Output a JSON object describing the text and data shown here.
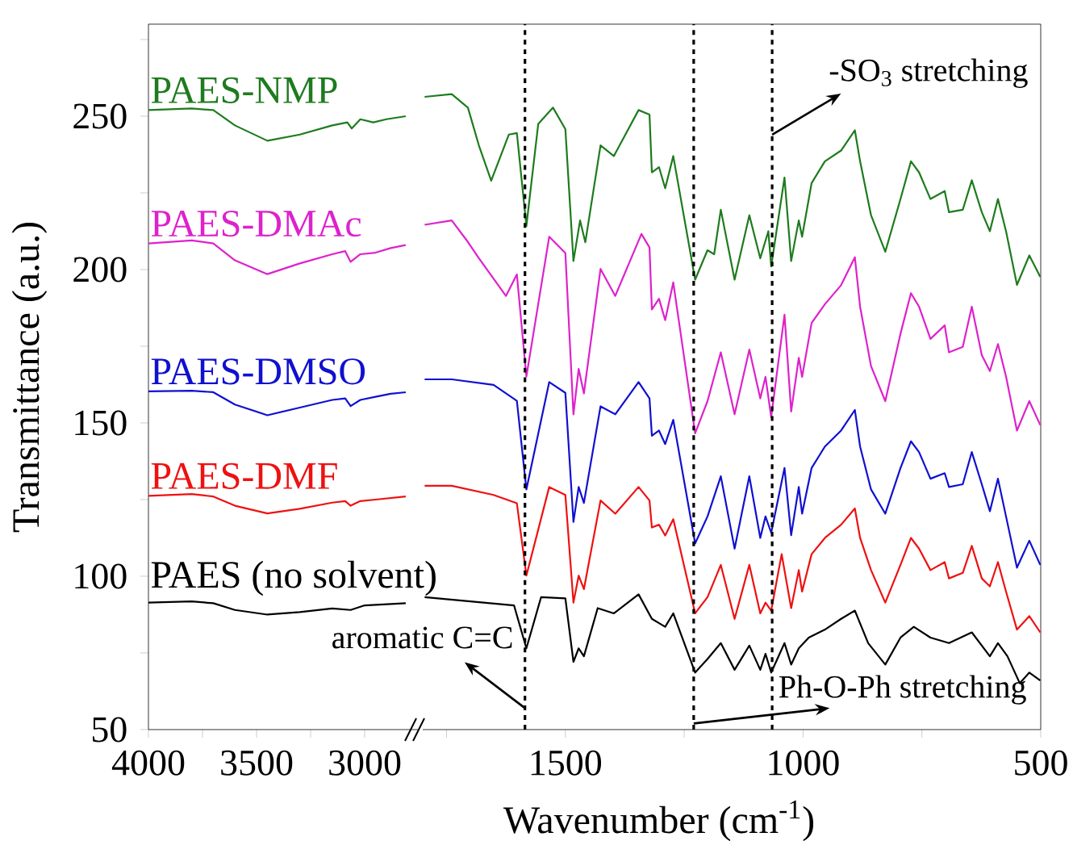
{
  "chart_data": [
    {
      "type": "line",
      "ylabel": "Transmittance (a.u.)",
      "xlim": [
        4000,
        2750
      ],
      "xticks": [
        4000,
        {
          "value": 3750,
          "label": null
        },
        3500,
        {
          "value": 3250,
          "label": null
        },
        3000
      ],
      "ylim": [
        50,
        280
      ],
      "yticks": [
        50,
        {
          "value": 75,
          "label": null
        },
        100,
        {
          "value": 125,
          "label": null
        },
        150,
        {
          "value": 175,
          "label": null
        },
        200,
        {
          "value": 225,
          "label": null
        },
        250,
        {
          "value": 275,
          "label": null
        }
      ],
      "series": [
        {
          "name": "PAES-NMP",
          "color": "#1e7b1e",
          "x": [
            4000,
            3800,
            3700,
            3600,
            3450,
            3300,
            3150,
            3080,
            3060,
            3020,
            2960,
            2900,
            2810
          ],
          "values": [
            252,
            252.5,
            252,
            247,
            242,
            244,
            247,
            248,
            246,
            249,
            248,
            249,
            250
          ]
        },
        {
          "name": "PAES-DMAc",
          "color": "#dd22cc",
          "x": [
            4000,
            3800,
            3700,
            3600,
            3450,
            3300,
            3150,
            3090,
            3065,
            3020,
            2950,
            2880,
            2810
          ],
          "values": [
            208.5,
            209.5,
            208.5,
            203,
            198.5,
            202,
            205,
            206,
            202.5,
            205,
            205.5,
            207,
            208
          ]
        },
        {
          "name": "PAES-DMSO",
          "color": "#1010d0",
          "x": [
            4000,
            3800,
            3700,
            3600,
            3450,
            3300,
            3150,
            3090,
            3065,
            3020,
            2950,
            2880,
            2810
          ],
          "values": [
            160.3,
            160.5,
            160,
            156,
            152.5,
            155,
            157.5,
            158,
            155.5,
            157.5,
            158.5,
            159.5,
            160
          ]
        },
        {
          "name": "PAES-DMF",
          "color": "#ee1111",
          "x": [
            4000,
            3800,
            3700,
            3600,
            3450,
            3300,
            3150,
            3090,
            3065,
            3020,
            2950,
            2810
          ],
          "values": [
            126.2,
            126.8,
            126,
            123,
            120.5,
            122,
            124,
            124.5,
            123,
            124.5,
            125,
            126
          ]
        },
        {
          "name": "PAES (no solvent)",
          "color": "#000000",
          "x": [
            4000,
            3800,
            3700,
            3600,
            3450,
            3300,
            3150,
            3065,
            3000,
            2810
          ],
          "values": [
            91.4,
            91.8,
            91.2,
            89,
            87.5,
            88.3,
            89.5,
            89,
            90.5,
            91.2
          ]
        }
      ]
    },
    {
      "type": "line",
      "xlabel": "Wavenumber (cm$^{-1}$)",
      "xlim": [
        1800,
        500
      ],
      "xticks": [
        {
          "value": 1750,
          "label": null
        },
        1500,
        {
          "value": 1250,
          "label": null
        },
        1000,
        {
          "value": 750,
          "label": null
        },
        500
      ],
      "ylim": [
        50,
        280
      ],
      "tick_labels": "x",
      "ref_lines": [
        {
          "axis": "x",
          "value": 1585,
          "color": "#000000",
          "line_style": "dashed"
        },
        {
          "axis": "x",
          "value": 1230,
          "color": "#000000",
          "line_style": "dashed"
        },
        {
          "axis": "x",
          "value": 1065,
          "color": "#000000",
          "line_style": "dashed"
        }
      ],
      "annotations": [
        {
          "text": "-SO$_{3}$ stretching",
          "x": 1065,
          "y": 244
        },
        {
          "text": "aromatic C=C",
          "x": 1585,
          "y": 57
        },
        {
          "text": "Ph-O-Ph stretching",
          "x": 1230,
          "y": 52
        }
      ],
      "series": [
        {
          "color": "#1e7b1e",
          "x": [
            1796,
            1739,
            1705,
            1682,
            1656,
            1619,
            1602,
            1582,
            1557,
            1526,
            1500,
            1483,
            1469,
            1458,
            1426,
            1398,
            1346,
            1323,
            1318,
            1303,
            1290,
            1273,
            1227,
            1201,
            1187,
            1173,
            1144,
            1113,
            1090,
            1073,
            1067,
            1039,
            1025,
            1009,
            1002,
            982,
            954,
            920,
            891,
            880,
            857,
            827,
            795,
            773,
            756,
            732,
            702,
            693,
            664,
            645,
            624,
            607,
            590,
            573,
            550,
            524,
            501
          ],
          "values": [
            256.3,
            257.2,
            252.8,
            240.5,
            229,
            244,
            244.5,
            214.2,
            247.5,
            252.8,
            245.8,
            202.8,
            216,
            208.9,
            240.5,
            237,
            252,
            250.5,
            231.7,
            233.4,
            226.5,
            237,
            196.7,
            206.3,
            205,
            219.5,
            196.7,
            217.7,
            203.7,
            212.5,
            201,
            230,
            202.8,
            216,
            210.7,
            228.2,
            235.3,
            238.8,
            245.4,
            235.3,
            217.7,
            205.8,
            223,
            235.3,
            231.7,
            223,
            225.6,
            218.7,
            219.5,
            229.1,
            218.7,
            212.5,
            223,
            212.5,
            195,
            204.6,
            197.6
          ]
        },
        {
          "color": "#dd22cc",
          "x": [
            1796,
            1739,
            1705,
            1682,
            1625,
            1602,
            1582,
            1534,
            1500,
            1483,
            1472,
            1461,
            1426,
            1395,
            1340,
            1323,
            1318,
            1303,
            1290,
            1273,
            1227,
            1201,
            1173,
            1144,
            1113,
            1090,
            1079,
            1067,
            1039,
            1025,
            1009,
            1002,
            982,
            954,
            920,
            891,
            880,
            857,
            827,
            795,
            773,
            756,
            732,
            702,
            693,
            664,
            645,
            624,
            607,
            590,
            573,
            550,
            524,
            501
          ],
          "values": [
            214.6,
            216,
            209,
            203.7,
            191.4,
            198.4,
            165.1,
            210.7,
            205.4,
            152.8,
            167.6,
            159.6,
            200.2,
            191.4,
            211.6,
            207.2,
            187,
            190.5,
            183.5,
            195.8,
            146.6,
            157.1,
            173,
            152.8,
            173.9,
            158,
            165,
            151.9,
            185.3,
            153.7,
            171.2,
            165,
            182.6,
            188.7,
            194.9,
            204,
            187.9,
            168.5,
            157.1,
            179.1,
            192.3,
            187.9,
            177.4,
            181.8,
            173,
            174.8,
            187.9,
            172.1,
            166.9,
            175.7,
            165.1,
            147.5,
            157.1,
            149.3
          ]
        },
        {
          "color": "#1010d0",
          "x": [
            1796,
            1739,
            1651,
            1602,
            1582,
            1534,
            1500,
            1483,
            1472,
            1461,
            1426,
            1395,
            1346,
            1323,
            1318,
            1303,
            1290,
            1273,
            1227,
            1201,
            1173,
            1144,
            1113,
            1090,
            1079,
            1067,
            1039,
            1025,
            1009,
            1002,
            982,
            954,
            920,
            891,
            880,
            857,
            827,
            795,
            773,
            756,
            732,
            702,
            693,
            664,
            645,
            624,
            607,
            590,
            573,
            550,
            524,
            501
          ],
          "values": [
            164.2,
            164.2,
            162.4,
            157.2,
            128.3,
            163.3,
            159.8,
            117.7,
            129.1,
            123.9,
            155.4,
            152.8,
            163.3,
            158,
            145.8,
            147.5,
            143.1,
            151,
            110.7,
            119.5,
            132.6,
            109,
            132.6,
            112.5,
            119.5,
            114.2,
            135.3,
            113.4,
            129.1,
            120.4,
            135.3,
            142.3,
            147.5,
            154.2,
            142.3,
            128.3,
            120.4,
            135.3,
            144,
            140.5,
            131.8,
            133.6,
            129.1,
            130,
            140.5,
            130,
            121.2,
            131.8,
            119.5,
            102.8,
            111.6,
            103.7
          ]
        },
        {
          "color": "#ee1111",
          "x": [
            1796,
            1739,
            1651,
            1602,
            1582,
            1534,
            1500,
            1483,
            1472,
            1461,
            1426,
            1395,
            1346,
            1323,
            1318,
            1303,
            1290,
            1273,
            1227,
            1201,
            1173,
            1144,
            1113,
            1090,
            1079,
            1067,
            1045,
            1025,
            1009,
            1002,
            982,
            954,
            920,
            891,
            880,
            857,
            827,
            795,
            773,
            756,
            732,
            702,
            693,
            664,
            645,
            624,
            607,
            590,
            573,
            550,
            524,
            501
          ],
          "values": [
            129.5,
            129.5,
            126.5,
            123.8,
            100.2,
            129.1,
            126.5,
            91.4,
            100.2,
            95.8,
            124.7,
            120.4,
            129.1,
            124.7,
            115.9,
            116.8,
            113.3,
            118.6,
            87.9,
            93.2,
            103.7,
            86.1,
            103.7,
            87.9,
            91.4,
            88.8,
            107.2,
            89.6,
            102,
            95,
            107.2,
            112.5,
            116.8,
            122.1,
            112.5,
            102,
            91.4,
            103.7,
            112.5,
            109,
            102,
            104.6,
            99.3,
            101.1,
            109.9,
            99.3,
            96.7,
            104.6,
            95,
            82.6,
            87,
            81.7
          ]
        },
        {
          "color": "#000000",
          "x": [
            1796,
            1608,
            1582,
            1551,
            1500,
            1483,
            1472,
            1461,
            1432,
            1398,
            1346,
            1318,
            1290,
            1273,
            1227,
            1201,
            1173,
            1144,
            1113,
            1090,
            1079,
            1067,
            1039,
            1025,
            1009,
            988,
            954,
            920,
            891,
            863,
            827,
            795,
            767,
            732,
            693,
            645,
            607,
            590,
            570,
            544,
            524,
            501
          ],
          "values": [
            93.2,
            90.5,
            76.5,
            93.2,
            92.8,
            72.1,
            76.5,
            73.9,
            89.6,
            87.9,
            94.1,
            86.1,
            83.5,
            87.9,
            68.6,
            73,
            78.2,
            69.5,
            77.4,
            69.5,
            74.7,
            68.6,
            78.2,
            71.2,
            76.5,
            80,
            82.6,
            86.1,
            88.8,
            78.2,
            71.2,
            80,
            83.5,
            80,
            78.2,
            81.7,
            73.9,
            78.2,
            73.9,
            65.1,
            68.6,
            66
          ]
        }
      ]
    }
  ]
}
